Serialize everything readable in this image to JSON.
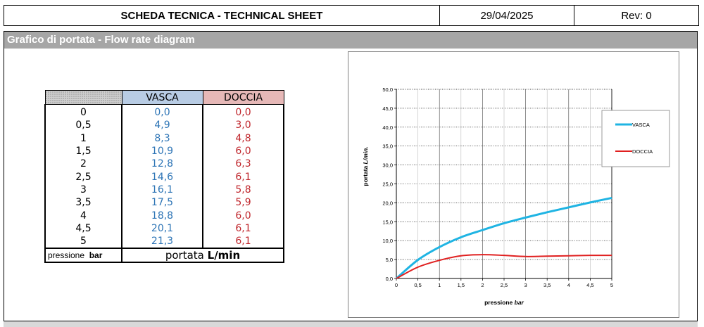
{
  "header": {
    "title": "SCHEDA TECNICA - TECHNICAL SHEET",
    "date": "29/04/2025",
    "rev": "Rev: 0"
  },
  "section": {
    "title": "Grafico di portata - Flow rate diagram"
  },
  "table": {
    "col_vasca": "VASCA",
    "col_doccia": "DOCCIA",
    "rows": [
      {
        "p": "0",
        "vasca": "0,0",
        "doccia": "0,0"
      },
      {
        "p": "0,5",
        "vasca": "4,9",
        "doccia": "3,0"
      },
      {
        "p": "1",
        "vasca": "8,3",
        "doccia": "4,8"
      },
      {
        "p": "1,5",
        "vasca": "10,9",
        "doccia": "6,0"
      },
      {
        "p": "2",
        "vasca": "12,8",
        "doccia": "6,3"
      },
      {
        "p": "2,5",
        "vasca": "14,6",
        "doccia": "6,1"
      },
      {
        "p": "3",
        "vasca": "16,1",
        "doccia": "5,8"
      },
      {
        "p": "3,5",
        "vasca": "17,5",
        "doccia": "5,9"
      },
      {
        "p": "4",
        "vasca": "18,8",
        "doccia": "6,0"
      },
      {
        "p": "4,5",
        "vasca": "20,1",
        "doccia": "6,1"
      },
      {
        "p": "5",
        "vasca": "21,3",
        "doccia": "6,1"
      }
    ],
    "foot_pressure_label": "pressione",
    "foot_pressure_unit": "bar",
    "foot_flow_label": "portata",
    "foot_flow_unit": "L/min"
  },
  "chart_data": {
    "type": "line",
    "xlabel": "pressione",
    "xlabel_unit": "bar",
    "ylabel": "portata",
    "ylabel_unit": "L/min.",
    "xlim": [
      0,
      5
    ],
    "ylim": [
      0,
      50
    ],
    "x_ticks": [
      "0",
      "0,5",
      "1",
      "1,5",
      "2",
      "2,5",
      "3",
      "3,5",
      "4",
      "4,5",
      "5"
    ],
    "y_ticks": [
      "0,0",
      "5,0",
      "10,0",
      "15,0",
      "20,0",
      "25,0",
      "30,0",
      "35,0",
      "40,0",
      "45,0",
      "50,0"
    ],
    "grid": true,
    "legend_position": "right",
    "x": [
      0,
      0.5,
      1,
      1.5,
      2,
      2.5,
      3,
      3.5,
      4,
      4.5,
      5
    ],
    "series": [
      {
        "name": "VASCA",
        "color": "#1fb4e3",
        "values": [
          0,
          4.9,
          8.3,
          10.9,
          12.8,
          14.6,
          16.1,
          17.5,
          18.8,
          20.1,
          21.3
        ]
      },
      {
        "name": "DOCCIA",
        "color": "#e02020",
        "values": [
          0,
          3.0,
          4.8,
          6.0,
          6.3,
          6.1,
          5.8,
          5.9,
          6.0,
          6.1,
          6.1
        ]
      }
    ]
  }
}
